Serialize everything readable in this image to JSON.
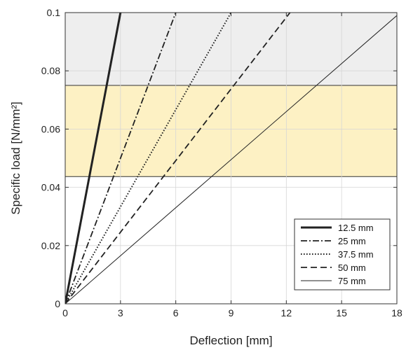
{
  "chart_data": {
    "type": "line",
    "title": "",
    "xlabel": "Deflection [mm]",
    "ylabel": "Specific load [N/mm²]",
    "xlim": [
      0,
      18
    ],
    "ylim": [
      0,
      0.1
    ],
    "xticks": [
      0,
      3,
      6,
      9,
      12,
      15,
      18
    ],
    "yticks": [
      0,
      0.02,
      0.04,
      0.06,
      0.08,
      0.1
    ],
    "xtick_labels": [
      "0",
      "3",
      "6",
      "9",
      "12",
      "15",
      "18"
    ],
    "ytick_labels": [
      "0",
      "0.02",
      "0.04",
      "0.06",
      "0.08",
      "0.1"
    ],
    "grid": true,
    "legend_position": "bottom-right",
    "bands": [
      {
        "y_from": 0.075,
        "y_to": 0.1,
        "color": "#eeeeee"
      },
      {
        "y_from": 0.0437,
        "y_to": 0.075,
        "color": "#fdf1c4"
      }
    ],
    "series": [
      {
        "name": "12.5 mm",
        "style": "solid-thick",
        "color": "#222222",
        "x": [
          0,
          3
        ],
        "y": [
          0,
          0.1
        ]
      },
      {
        "name": "25 mm",
        "style": "dashdot",
        "color": "#222222",
        "x": [
          0,
          6
        ],
        "y": [
          0,
          0.1
        ]
      },
      {
        "name": "37.5 mm",
        "style": "dotted",
        "color": "#222222",
        "x": [
          0,
          9
        ],
        "y": [
          0,
          0.1
        ]
      },
      {
        "name": "50 mm",
        "style": "dashed",
        "color": "#222222",
        "x": [
          0,
          12.2
        ],
        "y": [
          0,
          0.1
        ]
      },
      {
        "name": "75 mm",
        "style": "solid-thin",
        "color": "#222222",
        "x": [
          0,
          18
        ],
        "y": [
          0,
          0.099
        ]
      }
    ]
  }
}
